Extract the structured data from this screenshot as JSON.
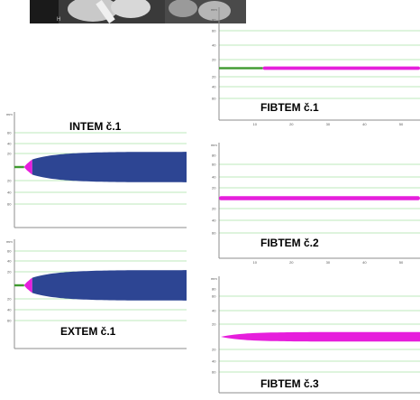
{
  "panels": [
    {
      "id": "fibtem1",
      "label": "FIBTEM č.1",
      "unit": "mm",
      "ylabels": [
        "80",
        "60",
        "40",
        "20",
        "20",
        "40",
        "60"
      ],
      "xlabels": [
        "10",
        "20",
        "30",
        "40",
        "50"
      ],
      "trace": {
        "kind": "fibtem-flat",
        "green_until": 12.0,
        "half_width": 0.6
      }
    },
    {
      "id": "intem1",
      "label": "INTEM č.1",
      "unit": "mm",
      "ylabels": [
        "60",
        "40",
        "20",
        "20",
        "40",
        "60"
      ],
      "xlabels": [],
      "trace": {
        "kind": "extem-intem",
        "ct": 3.1,
        "max_ampl": 45
      }
    },
    {
      "id": "fibtem2",
      "label": "FIBTEM č.2",
      "unit": "mm",
      "ylabels": [
        "80",
        "60",
        "40",
        "20",
        "20",
        "40",
        "60"
      ],
      "xlabels": [
        "10",
        "20",
        "30",
        "40",
        "50"
      ],
      "trace": {
        "kind": "fibtem-flat",
        "green_until": 0.0,
        "half_width": 1.2
      }
    },
    {
      "id": "extem1",
      "label": "EXTEM č.1",
      "unit": "mm",
      "ylabels": [
        "60",
        "40",
        "20",
        "20",
        "40",
        "60"
      ],
      "xlabels": [
        "",
        "",
        "",
        ""
      ],
      "trace": {
        "kind": "extem-intem",
        "ct": 3.1,
        "max_ampl": 45
      }
    },
    {
      "id": "fibtem3",
      "label": "FIBTEM č.3",
      "unit": "mm",
      "ylabels": [
        "80",
        "60",
        "40",
        "20",
        "20",
        "40",
        "60"
      ],
      "xlabels": [],
      "trace": {
        "kind": "fibtem-grow",
        "green_until": 0.0,
        "max_ampl": 15
      }
    }
  ],
  "colors": {
    "green": "#3f9a2f",
    "magenta": "#e61edc",
    "navy": "#2d4593",
    "grid": "#a8e0a4",
    "axis": "#8c8c8c"
  },
  "photo": {
    "mark": "H"
  }
}
